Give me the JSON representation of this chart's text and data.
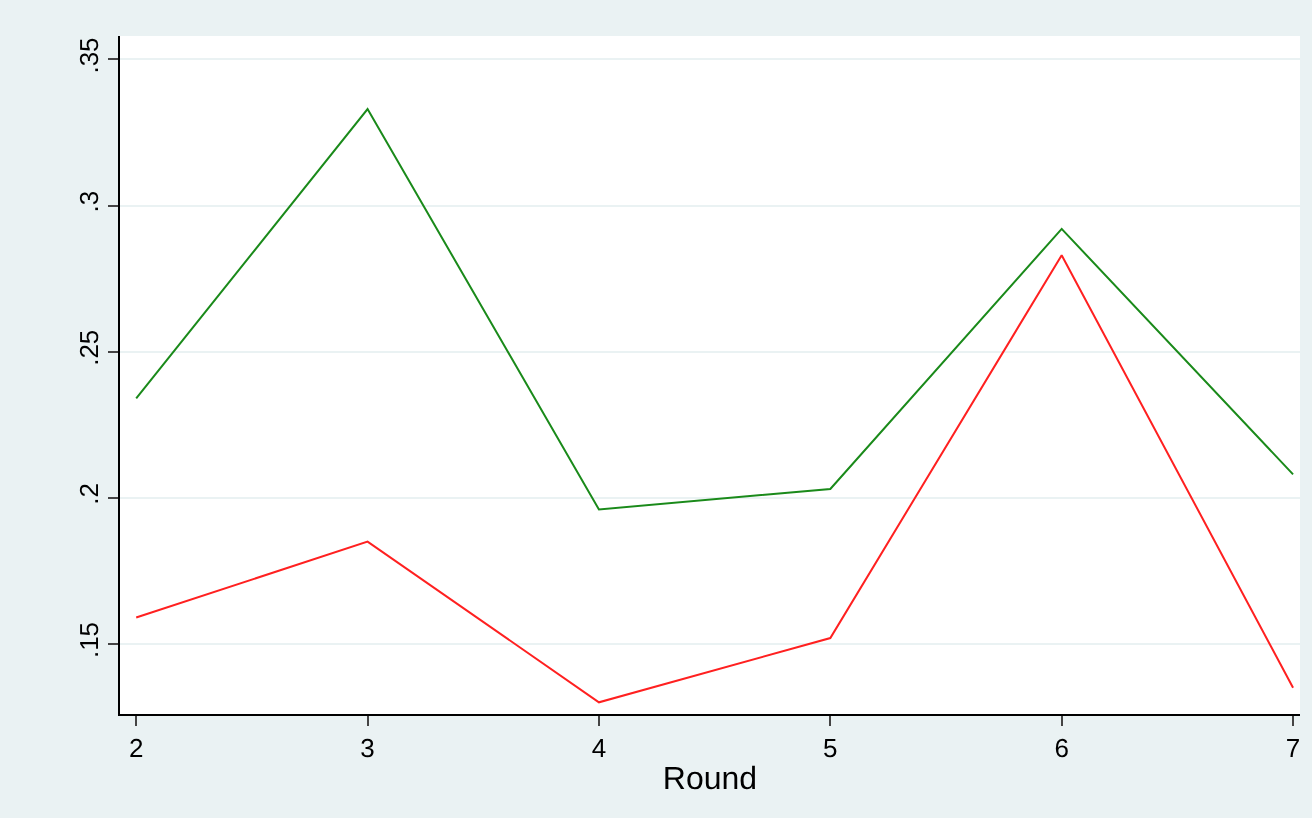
{
  "chart_data": {
    "type": "line",
    "xlabel": "Round",
    "x": [
      2,
      3,
      4,
      5,
      6,
      7
    ],
    "series": [
      {
        "color": "#1a8a1a",
        "values": [
          0.234,
          0.333,
          0.196,
          0.203,
          0.292,
          0.208
        ]
      },
      {
        "color": "#ff2020",
        "values": [
          0.159,
          0.185,
          0.13,
          0.152,
          0.283,
          0.135
        ]
      }
    ],
    "xlim": [
      1.93,
      7.03
    ],
    "ylim": [
      0.126,
      0.358
    ],
    "xticks": [
      2,
      3,
      4,
      5,
      6,
      7
    ],
    "yticks": [
      {
        "value": 0.15,
        "label": ".15"
      },
      {
        "value": 0.2,
        "label": ".2"
      },
      {
        "value": 0.25,
        "label": ".25"
      },
      {
        "value": 0.3,
        "label": ".3"
      },
      {
        "value": 0.35,
        "label": ".35"
      }
    ],
    "grid": "y",
    "marker": "none",
    "line_style": "solid"
  }
}
